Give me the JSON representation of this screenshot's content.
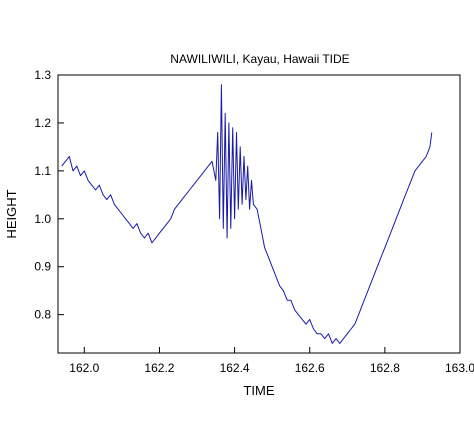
{
  "chart_data": {
    "type": "line",
    "title": "NAWILIWILI, Kayau, Hawaii TIDE",
    "xlabel": "TIME",
    "ylabel": "HEIGHT",
    "xlim": [
      161.93,
      163.0
    ],
    "ylim": [
      0.72,
      1.3
    ],
    "x_ticks": [
      162.0,
      162.2,
      162.4,
      162.6,
      162.8,
      163.0
    ],
    "x_tick_labels": [
      "162.0",
      "162.2",
      "162.4",
      "162.6",
      "162.8",
      "163.0"
    ],
    "y_ticks": [
      0.8,
      0.9,
      1.0,
      1.1,
      1.2,
      1.3
    ],
    "y_tick_labels": [
      "0.8",
      "0.9",
      "1.0",
      "1.1",
      "1.2",
      "1.3"
    ],
    "grid": false,
    "line_color": "#1a1aa6",
    "series": [
      {
        "x": [
          161.94,
          161.95,
          161.96,
          161.97,
          161.98,
          161.99,
          162.0,
          162.01,
          162.02,
          162.03,
          162.04,
          162.05,
          162.06,
          162.07,
          162.08,
          162.09,
          162.1,
          162.11,
          162.12,
          162.13,
          162.14,
          162.15,
          162.16,
          162.17,
          162.18,
          162.19,
          162.2,
          162.21,
          162.22,
          162.23,
          162.24,
          162.25,
          162.26,
          162.27,
          162.28,
          162.29,
          162.3,
          162.31,
          162.32,
          162.33,
          162.34,
          162.35,
          162.355,
          162.36,
          162.365,
          162.37,
          162.375,
          162.38,
          162.385,
          162.39,
          162.395,
          162.4,
          162.405,
          162.41,
          162.415,
          162.42,
          162.425,
          162.43,
          162.435,
          162.44,
          162.445,
          162.45,
          162.46,
          162.47,
          162.48,
          162.49,
          162.5,
          162.51,
          162.52,
          162.53,
          162.54,
          162.55,
          162.56,
          162.57,
          162.58,
          162.59,
          162.6,
          162.61,
          162.62,
          162.63,
          162.64,
          162.65,
          162.66,
          162.67,
          162.68,
          162.69,
          162.7,
          162.71,
          162.72,
          162.73,
          162.74,
          162.75,
          162.76,
          162.77,
          162.78,
          162.79,
          162.8,
          162.81,
          162.82,
          162.83,
          162.84,
          162.85,
          162.86,
          162.87,
          162.88,
          162.89,
          162.9,
          162.91,
          162.92,
          162.925
        ],
        "values": [
          1.11,
          1.12,
          1.13,
          1.1,
          1.11,
          1.09,
          1.1,
          1.08,
          1.07,
          1.06,
          1.07,
          1.05,
          1.04,
          1.05,
          1.03,
          1.02,
          1.01,
          1.0,
          0.99,
          0.98,
          0.99,
          0.97,
          0.96,
          0.97,
          0.95,
          0.96,
          0.97,
          0.98,
          0.99,
          1.0,
          1.02,
          1.03,
          1.04,
          1.05,
          1.06,
          1.07,
          1.08,
          1.09,
          1.1,
          1.11,
          1.12,
          1.08,
          1.18,
          1.0,
          1.28,
          0.98,
          1.22,
          0.96,
          1.2,
          0.98,
          1.19,
          1.0,
          1.18,
          1.02,
          1.15,
          1.03,
          1.13,
          1.04,
          1.11,
          1.02,
          1.08,
          1.03,
          1.02,
          0.98,
          0.94,
          0.92,
          0.9,
          0.88,
          0.86,
          0.85,
          0.83,
          0.83,
          0.81,
          0.8,
          0.79,
          0.78,
          0.79,
          0.77,
          0.76,
          0.76,
          0.75,
          0.76,
          0.74,
          0.75,
          0.74,
          0.75,
          0.76,
          0.77,
          0.78,
          0.8,
          0.82,
          0.84,
          0.86,
          0.88,
          0.9,
          0.92,
          0.94,
          0.96,
          0.98,
          1.0,
          1.02,
          1.04,
          1.06,
          1.08,
          1.1,
          1.11,
          1.12,
          1.13,
          1.15,
          1.18
        ]
      }
    ]
  }
}
